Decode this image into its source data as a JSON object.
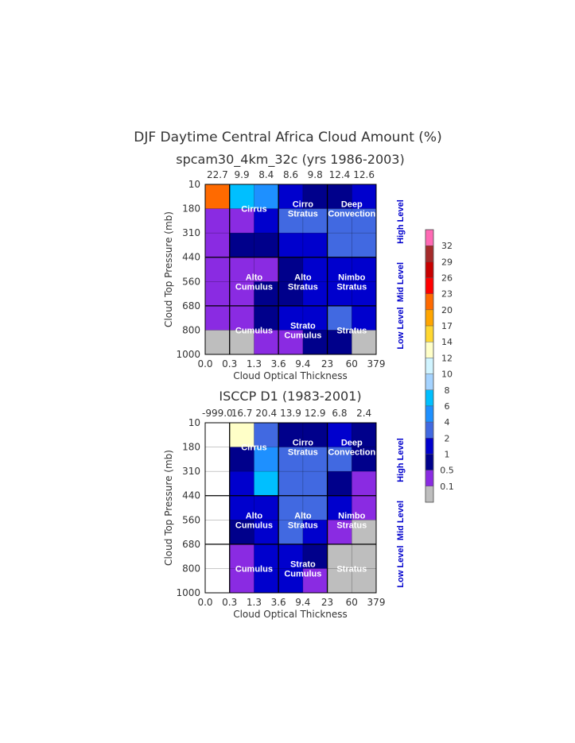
{
  "chart_data": {
    "type": "heatmap",
    "title": "DJF Daytime Central Africa Cloud Amount (%)",
    "colorbar": {
      "ticks": [
        "0.1",
        "0.5",
        "1",
        "2",
        "4",
        "6",
        "8",
        "10",
        "12",
        "14",
        "17",
        "20",
        "23",
        "26",
        "29",
        "32"
      ],
      "colors": [
        "#bebebe",
        "#8a2be2",
        "#00008b",
        "#0000cd",
        "#4169e1",
        "#1e90ff",
        "#00bfff",
        "#a4d3ff",
        "#d0f4ff",
        "#ffffc8",
        "#ffd730",
        "#ffa500",
        "#ff6a00",
        "#ff0000",
        "#c80000",
        "#a52a2a",
        "#ff69b4"
      ]
    },
    "xlabel": "Cloud Optical Thickness",
    "ylabel": "Cloud Top Pressure (mb)",
    "xticks": [
      "0.0",
      "0.3",
      "1.3",
      "3.6",
      "9.4",
      "23",
      "60",
      "379"
    ],
    "yticks": [
      "10",
      "180",
      "310",
      "440",
      "560",
      "680",
      "800",
      "1000"
    ],
    "levels": [
      "High Level",
      "Mid Level",
      "Low Level"
    ],
    "cloud_types": [
      {
        "name": "Cirrus",
        "lines": [
          "Cirrus"
        ],
        "col": 1.5,
        "row": 1
      },
      {
        "name": "Cirro Stratus",
        "lines": [
          "Cirro",
          "Stratus"
        ],
        "col": 3.5,
        "row": 1
      },
      {
        "name": "Deep Convection",
        "lines": [
          "Deep",
          "Convection"
        ],
        "col": 5.5,
        "row": 1
      },
      {
        "name": "Alto Cumulus",
        "lines": [
          "Alto",
          "Cumulus"
        ],
        "col": 1.5,
        "row": 4
      },
      {
        "name": "Alto Stratus",
        "lines": [
          "Alto",
          "Stratus"
        ],
        "col": 3.5,
        "row": 4
      },
      {
        "name": "Nimbo Stratus",
        "lines": [
          "Nimbo",
          "Stratus"
        ],
        "col": 5.5,
        "row": 4
      },
      {
        "name": "Cumulus",
        "lines": [
          "Cumulus"
        ],
        "col": 1.5,
        "row": 6
      },
      {
        "name": "Strato Cumulus",
        "lines": [
          "Strato",
          "Cumulus"
        ],
        "col": 3.5,
        "row": 6
      },
      {
        "name": "Stratus",
        "lines": [
          "Stratus"
        ],
        "col": 5.5,
        "row": 6
      }
    ],
    "panels": [
      {
        "title": "spcam30_4km_32c (yrs 1986-2003)",
        "column_totals": [
          "22.7",
          "9.9",
          "8.4",
          "8.6",
          "9.8",
          "12.4",
          "12.6"
        ],
        "values": [
          [
            21.5,
            7,
            5,
            1.5,
            0.75,
            0.75,
            1.5
          ],
          [
            0.3,
            0.3,
            1.5,
            3,
            3,
            3,
            3
          ],
          [
            0.3,
            0.75,
            0.75,
            1.5,
            1.5,
            3,
            3
          ],
          [
            0.3,
            0.3,
            0.3,
            0.75,
            1.5,
            1.5,
            1.5
          ],
          [
            0.3,
            0.3,
            0.75,
            0.75,
            1.5,
            1.5,
            1.5
          ],
          [
            0.3,
            0.3,
            0.75,
            1.5,
            1.5,
            3,
            1.5
          ],
          [
            0.05,
            0.05,
            0.3,
            0.3,
            0.75,
            0.75,
            0.05
          ]
        ]
      },
      {
        "title": "ISCCP D1 (1983-2001)",
        "column_totals": [
          "-999.0",
          "16.7",
          "20.4",
          "13.9",
          "12.9",
          "6.8",
          "2.4"
        ],
        "values": [
          [
            null,
            13,
            3,
            0.75,
            0.75,
            1.5,
            0.75
          ],
          [
            null,
            0.75,
            5,
            3,
            3,
            3,
            0.75
          ],
          [
            null,
            1.5,
            7,
            3,
            3,
            0.75,
            0.3
          ],
          [
            null,
            1.5,
            1.5,
            3,
            3,
            1.5,
            0.3
          ],
          [
            null,
            0.75,
            1.5,
            3,
            1.5,
            0.3,
            0.05
          ],
          [
            null,
            0.3,
            1.5,
            1.5,
            0.75,
            0.05,
            0.05
          ],
          [
            null,
            0.3,
            1.5,
            1.5,
            0.3,
            0.05,
            0.05
          ]
        ]
      }
    ]
  }
}
